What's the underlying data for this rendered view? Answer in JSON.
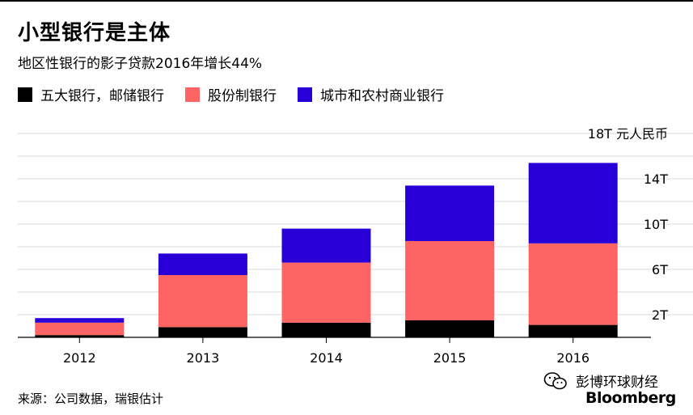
{
  "header": {
    "title": "小型银行是主体",
    "subtitle": "地区性银行的影子贷款2016年增长44%"
  },
  "chart_data": {
    "type": "bar",
    "stacked": true,
    "categories": [
      "2012",
      "2013",
      "2014",
      "2015",
      "2016"
    ],
    "series": [
      {
        "name": "五大银行，邮储银行",
        "color": "#000000",
        "values": [
          0.2,
          0.9,
          1.3,
          1.5,
          1.1
        ]
      },
      {
        "name": "股份制银行",
        "color": "#ff6464",
        "values": [
          1.1,
          4.6,
          5.3,
          7.0,
          7.2
        ]
      },
      {
        "name": "城市和农村商业银行",
        "color": "#2800d7",
        "values": [
          0.4,
          1.9,
          3.0,
          4.9,
          7.1
        ]
      }
    ],
    "ylim": [
      0,
      18
    ],
    "yticks": [
      2,
      6,
      10,
      14,
      18
    ],
    "ytick_labels": [
      "2T",
      "6T",
      "10T",
      "14T",
      "18T 元人民币"
    ],
    "grid": true,
    "legend_position": "top-left"
  },
  "footer": {
    "source": "来源：公司数据，瑞银估计",
    "wechat_account": "彭博环球财经",
    "brand": "Bloomberg"
  }
}
